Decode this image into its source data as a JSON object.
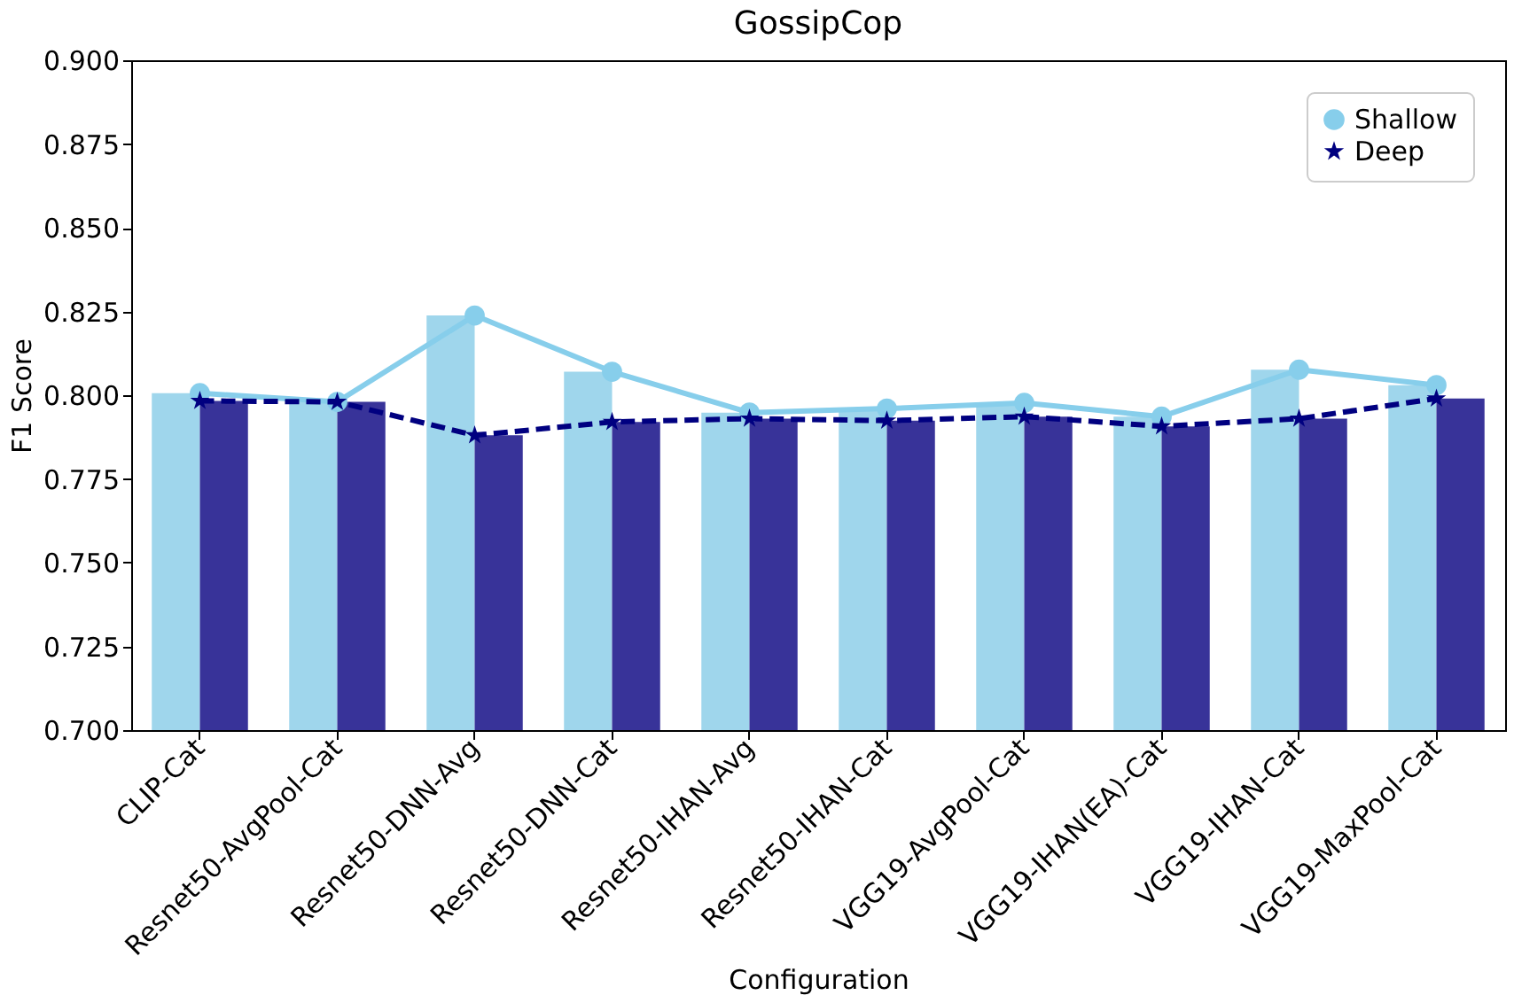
{
  "chart_data": {
    "type": "bar",
    "title": "GossipCop",
    "xlabel": "Configuration",
    "ylabel": "F1 Score",
    "categories": [
      "CLIP-Cat",
      "Resnet50-AvgPool-Cat",
      "Resnet50-DNN-Avg",
      "Resnet50-DNN-Cat",
      "Resnet50-IHAN-Avg",
      "Resnet50-IHAN-Cat",
      "VGG19-AvgPool-Cat",
      "VGG19-IHAN(EA)-Cat",
      "VGG19-IHAN-Cat",
      "VGG19-MaxPool-Cat"
    ],
    "series": [
      {
        "color": "#9fd6ec",
        "values": [
          0.8006,
          0.798,
          0.8238,
          0.807,
          0.7948,
          0.796,
          0.7977,
          0.7936,
          0.8076,
          0.803
        ]
      },
      {
        "color": "#383399",
        "values": [
          0.7983,
          0.798,
          0.788,
          0.792,
          0.793,
          0.7924,
          0.7936,
          0.7907,
          0.793,
          0.799
        ]
      },
      {
        "type": "line",
        "name": "Shallow",
        "color": "#87ceeb",
        "marker": "circle",
        "line_style": "solid",
        "values": [
          0.8006,
          0.798,
          0.8238,
          0.807,
          0.7948,
          0.796,
          0.7977,
          0.7936,
          0.8076,
          0.803
        ]
      },
      {
        "type": "line",
        "name": "Deep",
        "color": "#000080",
        "marker": "star",
        "line_style": "dashed",
        "values": [
          0.7983,
          0.798,
          0.788,
          0.792,
          0.793,
          0.7924,
          0.7936,
          0.7907,
          0.793,
          0.799
        ]
      }
    ],
    "ylim": [
      0.7,
      0.9
    ],
    "yticks": [
      {
        "value": 0.7,
        "label": "0.700"
      },
      0.725,
      {
        "value": 0.75,
        "label": "0.750"
      },
      0.775,
      {
        "value": 0.8,
        "label": "0.800"
      },
      0.825,
      {
        "value": 0.85,
        "label": "0.850"
      },
      0.875,
      {
        "value": 0.9,
        "label": "0.900"
      }
    ],
    "grid": false,
    "legend": "top right"
  }
}
